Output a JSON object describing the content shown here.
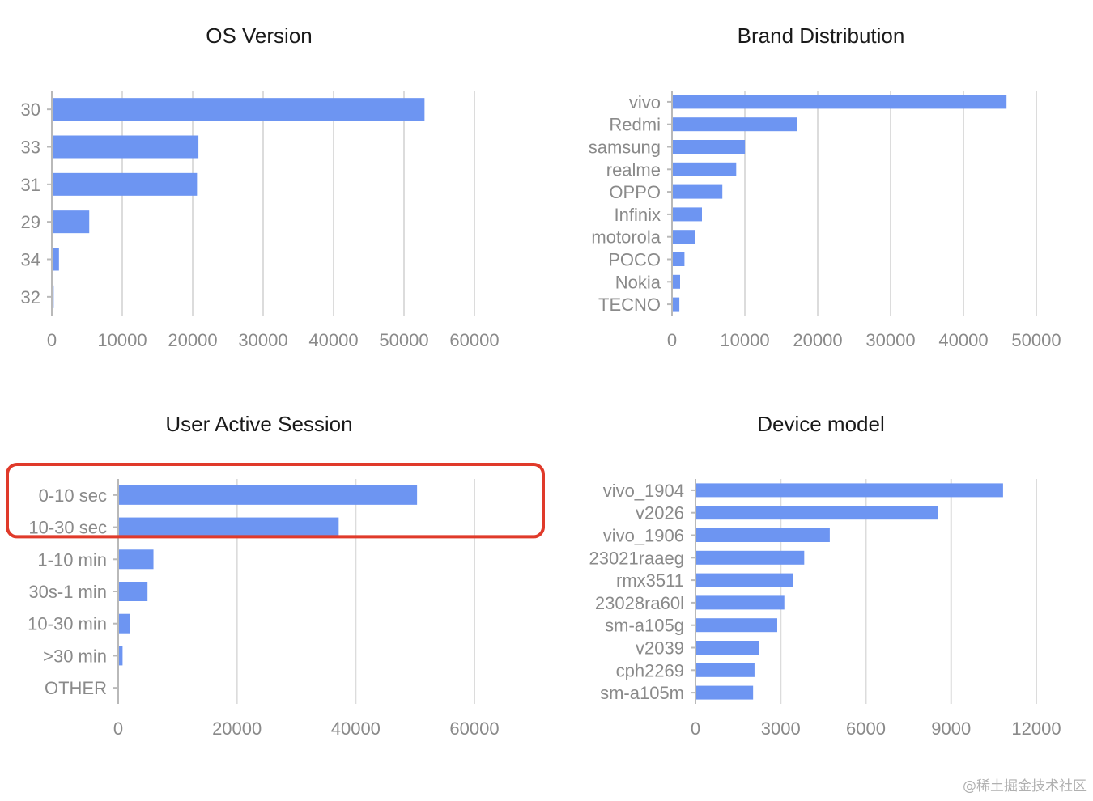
{
  "watermark": "@稀土掘金技术社区",
  "colors": {
    "bar": "#6d95f2",
    "highlight": "#e03a2a",
    "grid": "#dcdcdc"
  },
  "chart_data": [
    {
      "type": "bar",
      "orientation": "horizontal",
      "title": "OS Version",
      "categories": [
        "30",
        "33",
        "31",
        "29",
        "34",
        "32"
      ],
      "values": [
        52800,
        20700,
        20500,
        5200,
        900,
        150
      ],
      "xlim": [
        0,
        60000
      ],
      "xticks": [
        "0",
        "10000",
        "20000",
        "30000",
        "40000",
        "50000",
        "60000"
      ],
      "grid": true
    },
    {
      "type": "bar",
      "orientation": "horizontal",
      "title": "Brand Distribution",
      "categories": [
        "vivo",
        "Redmi",
        "samsung",
        "realme",
        "OPPO",
        "Infinix",
        "motorola",
        "POCO",
        "Nokia",
        "TECNO"
      ],
      "values": [
        45800,
        17000,
        9900,
        8700,
        6800,
        4000,
        3000,
        1600,
        1000,
        900
      ],
      "xlim": [
        0,
        50000
      ],
      "xticks": [
        "0",
        "10000",
        "20000",
        "30000",
        "40000",
        "50000"
      ],
      "grid": true
    },
    {
      "type": "bar",
      "orientation": "horizontal",
      "title": "User Active Session",
      "categories": [
        "0-10 sec",
        "10-30 sec",
        "1-10 min",
        "30s-1 min",
        "10-30 min",
        ">30 min",
        "OTHER"
      ],
      "values": [
        50200,
        37000,
        5800,
        4800,
        1900,
        600,
        0
      ],
      "xlim": [
        0,
        60000
      ],
      "xticks": [
        "0",
        "20000",
        "40000",
        "60000"
      ],
      "grid": true,
      "highlighted_categories": [
        "0-10 sec",
        "10-30 sec"
      ]
    },
    {
      "type": "bar",
      "orientation": "horizontal",
      "title": "Device model",
      "categories": [
        "vivo_1904",
        "v2026",
        "vivo_1906",
        "23021raaeg",
        "rmx3511",
        "23028ra60l",
        "sm-a105g",
        "v2039",
        "cph2269",
        "sm-a105m"
      ],
      "values": [
        10800,
        8500,
        4700,
        3800,
        3400,
        3100,
        2850,
        2200,
        2050,
        2000
      ],
      "xlim": [
        0,
        12000
      ],
      "xticks": [
        "0",
        "3000",
        "6000",
        "9000",
        "12000"
      ],
      "grid": true
    }
  ]
}
